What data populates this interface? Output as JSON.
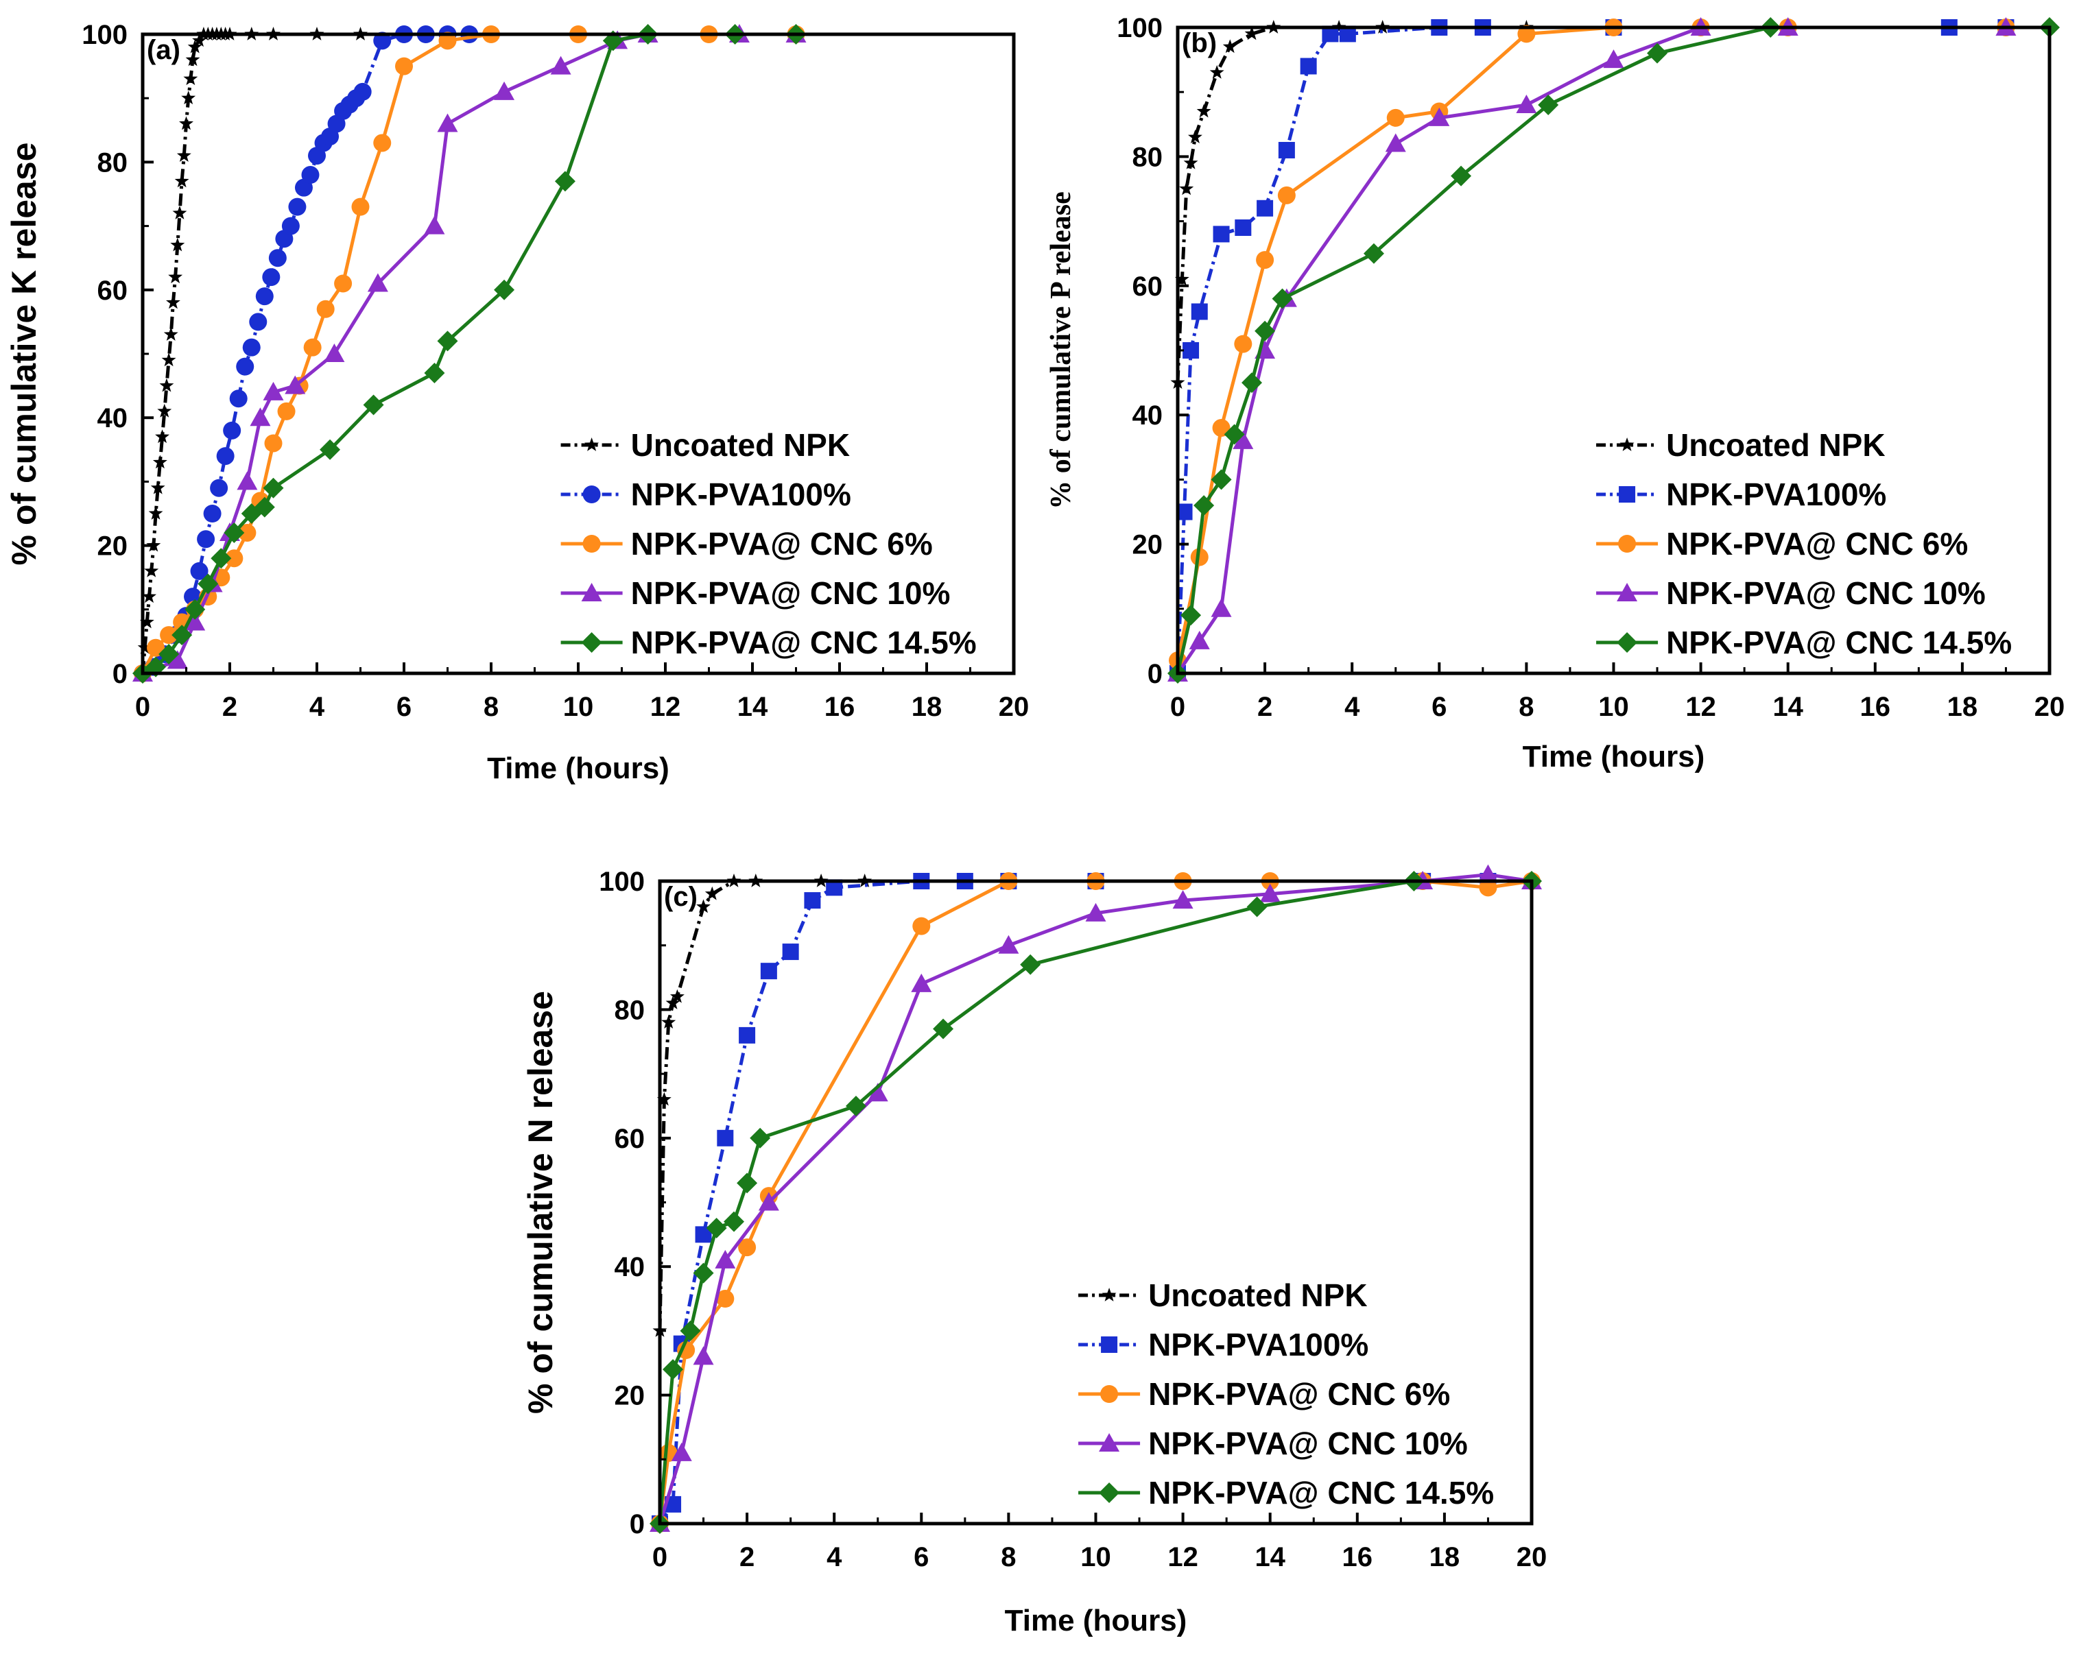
{
  "chart_data": [
    {
      "type": "line",
      "panel_label": "(a)",
      "title": "",
      "xlabel": "Time (hours)",
      "ylabel": "% of cumulative K release",
      "xlim": [
        0,
        20
      ],
      "ylim": [
        0,
        100
      ],
      "xticks": [
        "0",
        "2",
        "4",
        "6",
        "8",
        "10",
        "12",
        "14",
        "16",
        "18",
        "20"
      ],
      "yticks": [
        "0",
        "20",
        "40",
        "60",
        "80",
        "100"
      ],
      "legend_position": "bottom-right",
      "series": [
        {
          "name": "Uncoated NPK",
          "color": "#000000",
          "marker": "star",
          "dash": "dashdot",
          "x": [
            0,
            0.05,
            0.1,
            0.15,
            0.2,
            0.25,
            0.3,
            0.35,
            0.4,
            0.45,
            0.5,
            0.55,
            0.6,
            0.65,
            0.7,
            0.75,
            0.8,
            0.85,
            0.9,
            0.95,
            1,
            1.05,
            1.1,
            1.15,
            1.2,
            1.3,
            1.4,
            1.5,
            1.6,
            1.7,
            1.8,
            1.9,
            2,
            2.5,
            3,
            4,
            5
          ],
          "y": [
            0,
            4,
            8,
            12,
            16,
            20,
            25,
            29,
            33,
            37,
            41,
            45,
            49,
            53,
            58,
            62,
            67,
            72,
            77,
            81,
            86,
            90,
            93,
            96,
            98,
            99,
            100,
            100,
            100,
            100,
            100,
            100,
            100,
            100,
            100,
            100,
            100
          ]
        },
        {
          "name": "NPK-PVA100%",
          "color": "#1a2fd1",
          "marker": "circle",
          "dash": "dashdot",
          "x": [
            0,
            0.25,
            0.5,
            0.75,
            1,
            1.15,
            1.3,
            1.45,
            1.6,
            1.75,
            1.9,
            2.05,
            2.2,
            2.35,
            2.5,
            2.65,
            2.8,
            2.95,
            3.1,
            3.25,
            3.4,
            3.55,
            3.7,
            3.85,
            4,
            4.15,
            4.3,
            4.45,
            4.6,
            4.75,
            4.9,
            5.05,
            5.5,
            6,
            6.5,
            7,
            7.5
          ],
          "y": [
            0,
            1,
            3,
            6,
            9,
            12,
            16,
            21,
            25,
            29,
            34,
            38,
            43,
            48,
            51,
            55,
            59,
            62,
            65,
            68,
            70,
            73,
            76,
            78,
            81,
            83,
            84,
            86,
            88,
            89,
            90,
            91,
            99,
            100,
            100,
            100,
            100
          ]
        },
        {
          "name": "NPK-PVA@ CNC 6%",
          "color": "#ff8c1a",
          "marker": "circle",
          "dash": "solid",
          "x": [
            0,
            0.3,
            0.6,
            0.9,
            1.2,
            1.5,
            1.8,
            2.1,
            2.4,
            2.7,
            3,
            3.3,
            3.6,
            3.9,
            4.2,
            4.6,
            5,
            5.5,
            6,
            7,
            8,
            10,
            13,
            15
          ],
          "y": [
            0,
            4,
            6,
            8,
            10,
            12,
            15,
            18,
            22,
            27,
            36,
            41,
            45,
            51,
            57,
            61,
            73,
            83,
            95,
            99,
            100,
            100,
            100,
            100
          ]
        },
        {
          "name": "NPK-PVA@ CNC 10%",
          "color": "#8b2fc9",
          "marker": "triangle",
          "dash": "solid",
          "x": [
            0,
            0.8,
            1.2,
            1.6,
            2,
            2.4,
            2.7,
            3,
            3.5,
            4.4,
            5.4,
            6.7,
            7,
            8.3,
            9.6,
            10.9,
            11.6,
            13.7,
            15
          ],
          "y": [
            0,
            2,
            8,
            14,
            22,
            30,
            40,
            44,
            45,
            50,
            61,
            70,
            86,
            91,
            95,
            99,
            100,
            100,
            100
          ]
        },
        {
          "name": "NPK-PVA@ CNC 14.5%",
          "color": "#1a7a1a",
          "marker": "diamond",
          "dash": "solid",
          "x": [
            0,
            0.3,
            0.6,
            0.9,
            1.2,
            1.5,
            1.8,
            2.1,
            2.5,
            2.8,
            3,
            4.3,
            5.3,
            6.7,
            7,
            8.3,
            9.7,
            10.8,
            11.6,
            13.6,
            15
          ],
          "y": [
            0,
            1,
            3,
            6,
            10,
            14,
            18,
            22,
            25,
            26,
            29,
            35,
            42,
            47,
            52,
            60,
            77,
            99,
            100,
            100,
            100
          ]
        }
      ]
    },
    {
      "type": "line",
      "panel_label": "(b)",
      "title": "",
      "xlabel": "Time (hours)",
      "ylabel": "% of cumulative P release",
      "xlim": [
        0,
        20
      ],
      "ylim": [
        0,
        100
      ],
      "xticks": [
        "0",
        "2",
        "4",
        "6",
        "8",
        "10",
        "12",
        "14",
        "16",
        "18",
        "20"
      ],
      "yticks": [
        "0",
        "20",
        "40",
        "60",
        "80",
        "100"
      ],
      "legend_position": "bottom-right",
      "series": [
        {
          "name": "Uncoated NPK",
          "color": "#000000",
          "marker": "star",
          "dash": "dashdot",
          "x": [
            0,
            0.1,
            0.2,
            0.3,
            0.4,
            0.6,
            0.9,
            1.2,
            1.7,
            2.2,
            3.7,
            4.7,
            6,
            8,
            10,
            12,
            14
          ],
          "y": [
            45,
            61,
            75,
            79,
            83,
            87,
            93,
            97,
            99,
            100,
            100,
            100,
            100,
            100,
            100,
            100,
            100
          ]
        },
        {
          "name": "NPK-PVA100%",
          "color": "#1a2fd1",
          "marker": "square",
          "dash": "dashdot",
          "x": [
            0,
            0.15,
            0.3,
            0.5,
            1,
            1.5,
            2,
            2.5,
            3,
            3.5,
            3.9,
            6,
            7,
            10,
            17.7,
            19
          ],
          "y": [
            0,
            25,
            50,
            56,
            68,
            69,
            72,
            81,
            94,
            99,
            99,
            100,
            100,
            100,
            100,
            100
          ]
        },
        {
          "name": "NPK-PVA@ CNC 6%",
          "color": "#ff8c1a",
          "marker": "circle",
          "dash": "solid",
          "x": [
            0,
            0.5,
            1,
            1.5,
            2,
            2.5,
            5,
            6,
            8,
            10,
            12,
            14,
            19
          ],
          "y": [
            2,
            18,
            38,
            51,
            64,
            74,
            86,
            87,
            99,
            100,
            100,
            100,
            100
          ]
        },
        {
          "name": "NPK-PVA@ CNC 10%",
          "color": "#8b2fc9",
          "marker": "triangle",
          "dash": "solid",
          "x": [
            0,
            0.5,
            1,
            1.5,
            2,
            2.5,
            5,
            6,
            8,
            10,
            12,
            14,
            19
          ],
          "y": [
            0,
            5,
            10,
            36,
            50,
            58,
            82,
            86,
            88,
            95,
            100,
            100,
            100
          ]
        },
        {
          "name": "NPK-PVA@ CNC 14.5%",
          "color": "#1a7a1a",
          "marker": "diamond",
          "dash": "solid",
          "x": [
            0,
            0.3,
            0.6,
            1,
            1.3,
            1.7,
            2,
            2.4,
            4.5,
            6.5,
            8.5,
            11,
            13.6,
            20
          ],
          "y": [
            0,
            9,
            26,
            30,
            37,
            45,
            53,
            58,
            65,
            77,
            88,
            96,
            100,
            100
          ]
        }
      ]
    },
    {
      "type": "line",
      "panel_label": "(c)",
      "title": "",
      "xlabel": "Time (hours)",
      "ylabel": "% of cumulative N release",
      "xlim": [
        0,
        20
      ],
      "ylim": [
        0,
        100
      ],
      "xticks": [
        "0",
        "2",
        "4",
        "6",
        "8",
        "10",
        "12",
        "14",
        "16",
        "18",
        "20"
      ],
      "yticks": [
        "0",
        "20",
        "40",
        "60",
        "80",
        "100"
      ],
      "legend_position": "bottom-right",
      "series": [
        {
          "name": "Uncoated NPK",
          "color": "#000000",
          "marker": "star",
          "dash": "dashdot",
          "x": [
            0,
            0.1,
            0.2,
            0.3,
            0.4,
            1,
            1.2,
            1.7,
            2.2,
            3.7,
            4.7,
            6,
            8,
            10,
            12,
            14,
            20
          ],
          "y": [
            30,
            66,
            78,
            81,
            82,
            96,
            98,
            100,
            100,
            100,
            100,
            100,
            100,
            100,
            100,
            100,
            100
          ]
        },
        {
          "name": "NPK-PVA100%",
          "color": "#1a2fd1",
          "marker": "square",
          "dash": "dashdot",
          "x": [
            0,
            0.3,
            0.5,
            1,
            1.5,
            2,
            2.5,
            3,
            3.5,
            4,
            6,
            7,
            8,
            10,
            17.5,
            19
          ],
          "y": [
            0,
            3,
            28,
            45,
            60,
            76,
            86,
            89,
            97,
            99,
            100,
            100,
            100,
            100,
            100,
            100
          ]
        },
        {
          "name": "NPK-PVA@ CNC 6%",
          "color": "#ff8c1a",
          "marker": "circle",
          "dash": "solid",
          "x": [
            0,
            0.2,
            0.6,
            1.5,
            2,
            2.5,
            6,
            8,
            10,
            12,
            14,
            17.5,
            19,
            20
          ],
          "y": [
            0,
            11,
            27,
            35,
            43,
            51,
            93,
            100,
            100,
            100,
            100,
            100,
            99,
            100
          ]
        },
        {
          "name": "NPK-PVA@ CNC 10%",
          "color": "#8b2fc9",
          "marker": "triangle",
          "dash": "solid",
          "x": [
            0,
            0.5,
            1,
            1.5,
            2.5,
            5,
            6,
            8,
            10,
            12,
            14,
            17.5,
            19,
            20
          ],
          "y": [
            0,
            11,
            26,
            41,
            50,
            67,
            84,
            90,
            95,
            97,
            98,
            100,
            101,
            100
          ]
        },
        {
          "name": "NPK-PVA@ CNC 14.5%",
          "color": "#1a7a1a",
          "marker": "diamond",
          "dash": "solid",
          "x": [
            0,
            0.3,
            0.7,
            1,
            1.3,
            1.7,
            2,
            2.3,
            4.5,
            6.5,
            8.5,
            13.7,
            17.3,
            20
          ],
          "y": [
            0,
            24,
            30,
            39,
            46,
            47,
            53,
            60,
            65,
            77,
            87,
            96,
            100,
            100
          ]
        }
      ]
    }
  ]
}
